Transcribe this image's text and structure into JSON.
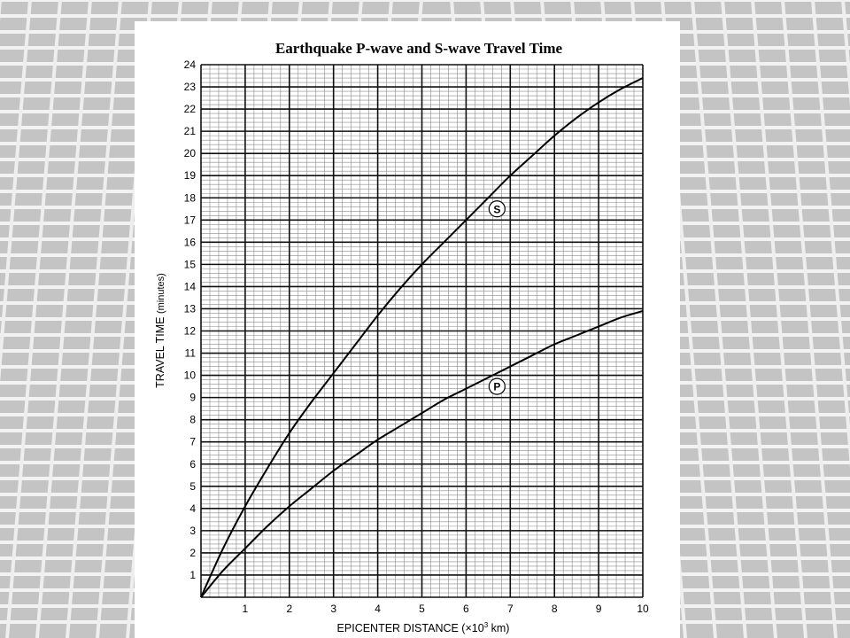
{
  "chart_data": {
    "type": "line",
    "title": "Earthquake P-wave and S-wave Travel Time",
    "xlabel": "EPICENTER DISTANCE (×10",
    "xlabel_sup": "3",
    "xlabel_suffix": " km)",
    "ylabel": "TRAVEL TIME",
    "ylabel_unit": "(minutes)",
    "xlim": [
      0,
      10
    ],
    "ylim": [
      0,
      24
    ],
    "x_ticks": [
      "1",
      "2",
      "3",
      "4",
      "5",
      "6",
      "7",
      "8",
      "9",
      "10"
    ],
    "y_ticks": [
      "1",
      "2",
      "3",
      "4",
      "5",
      "6",
      "7",
      "8",
      "9",
      "10",
      "11",
      "12",
      "13",
      "14",
      "15",
      "16",
      "17",
      "18",
      "19",
      "20",
      "21",
      "22",
      "23",
      "24"
    ],
    "grid": true,
    "series": [
      {
        "name": "S",
        "x": [
          0,
          0.5,
          1,
          1.5,
          2,
          2.5,
          3,
          3.5,
          4,
          4.5,
          5,
          5.5,
          6,
          6.5,
          7,
          7.5,
          8,
          8.5,
          9,
          9.5,
          10
        ],
        "y": [
          0,
          2.2,
          4.1,
          5.8,
          7.4,
          8.8,
          10.1,
          11.4,
          12.7,
          13.9,
          15.0,
          16.0,
          17.0,
          18.0,
          19.0,
          19.9,
          20.8,
          21.6,
          22.3,
          22.9,
          23.4
        ]
      },
      {
        "name": "P",
        "x": [
          0,
          0.5,
          1,
          1.5,
          2,
          2.5,
          3,
          3.5,
          4,
          4.5,
          5,
          5.5,
          6,
          6.5,
          7,
          7.5,
          8,
          8.5,
          9,
          9.5,
          10
        ],
        "y": [
          0,
          1.2,
          2.2,
          3.2,
          4.1,
          4.9,
          5.7,
          6.4,
          7.1,
          7.7,
          8.3,
          8.9,
          9.4,
          9.9,
          10.4,
          10.9,
          11.4,
          11.8,
          12.2,
          12.6,
          12.9
        ]
      }
    ]
  }
}
